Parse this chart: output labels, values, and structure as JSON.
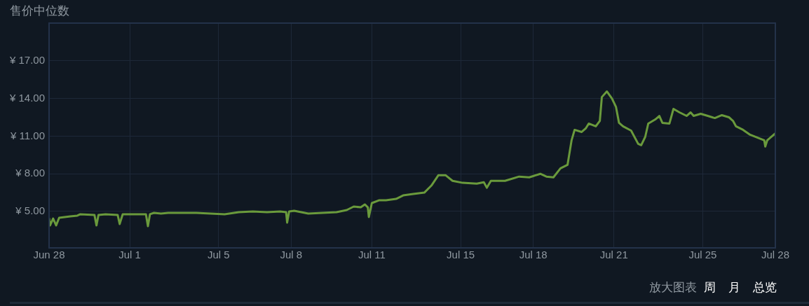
{
  "chart_data": {
    "type": "line",
    "title": "售价中位数",
    "annotations": [
      "放大图表",
      "周",
      "月",
      "总览"
    ],
    "x": [
      "--06-28T00:00",
      "--06-28T01:00",
      "--06-28T04:00",
      "--06-28T07:00",
      "--06-28T10:00",
      "--06-28T21:00",
      "--06-29T04:00",
      "--06-29T07:00",
      "--06-29T21:00",
      "--06-29T23:00",
      "--06-30T01:00",
      "--06-30T08:00",
      "--06-30T20:00",
      "--06-30T22:00",
      "--07-01T01:00",
      "--07-01T18:00",
      "--07-02T00:00",
      "--07-02T02:00",
      "--07-02T04:00",
      "--07-02T08:00",
      "--07-02T15:00",
      "--07-02T22:00",
      "--07-03T12:00",
      "--07-04T02:00",
      "--07-04T16:00",
      "--07-05T06:00",
      "--07-05T20:00",
      "--07-06T10:00",
      "--07-07T00:00",
      "--07-07T13:00",
      "--07-07T19:00",
      "--07-07T20:00",
      "--07-07T22:00",
      "--07-08T03:00",
      "--07-08T10:00",
      "--07-08T17:00",
      "--07-09T07:00",
      "--07-09T21:00",
      "--07-10T07:00",
      "--07-10T14:00",
      "--07-10T21:00",
      "--07-11T01:00",
      "--07-11T04:00",
      "--07-11T05:00",
      "--07-11T08:00",
      "--07-11T15:00",
      "--07-11T22:00",
      "--07-12T08:00",
      "--07-12T15:00",
      "--07-13T01:00",
      "--07-13T12:00",
      "--07-13T19:00",
      "--07-14T02:00",
      "--07-14T09:00",
      "--07-14T16:00",
      "--07-15T02:00",
      "--07-15T16:00",
      "--07-15T23:00",
      "--07-16T02:00",
      "--07-16T06:00",
      "--07-16T20:00",
      "--07-17T10:00",
      "--07-17T20:00",
      "--07-18T07:00",
      "--07-18T13:00",
      "--07-18T20:00",
      "--07-19T03:00",
      "--07-19T10:00",
      "--07-19T14:00",
      "--07-19T17:00",
      "--07-20T00:00",
      "--07-20T04:00",
      "--07-20T07:00",
      "--07-20T14:00",
      "--07-20T18:00",
      "--07-20T20:00",
      "--07-21T01:00",
      "--07-21T06:00",
      "--07-21T10:00",
      "--07-21T13:00",
      "--07-21T17:00",
      "--07-22T01:00",
      "--07-22T08:00",
      "--07-22T11:00",
      "--07-22T15:00",
      "--07-22T18:00",
      "--07-23T01:00",
      "--07-23T05:00",
      "--07-23T08:00",
      "--07-23T15:00",
      "--07-23T19:00",
      "--07-24T01:00",
      "--07-24T08:00",
      "--07-24T12:00",
      "--07-24T15:00",
      "--07-24T22:00",
      "--07-25T05:00",
      "--07-25T12:00",
      "--07-25T19:00",
      "--07-26T02:00",
      "--07-26T06:00",
      "--07-26T09:00",
      "--07-26T16:00",
      "--07-26T23:00",
      "--07-27T06:00",
      "--07-27T13:00",
      "--07-27T14:00",
      "--07-27T16:00",
      "--07-27T20:00",
      "--07-28T00:00"
    ],
    "series": [
      {
        "color": "#6a9a3c",
        "values": [
          4.44,
          3.89,
          4.44,
          3.89,
          4.5,
          4.61,
          4.67,
          4.78,
          4.72,
          3.89,
          4.72,
          4.78,
          4.72,
          4.0,
          4.78,
          4.78,
          4.78,
          3.83,
          4.78,
          4.89,
          4.83,
          4.89,
          4.89,
          4.89,
          4.83,
          4.78,
          4.94,
          5.0,
          4.94,
          5.0,
          4.94,
          4.11,
          5.0,
          5.06,
          4.94,
          4.83,
          4.89,
          4.94,
          5.11,
          5.39,
          5.33,
          5.56,
          5.33,
          4.56,
          5.67,
          5.89,
          5.89,
          6.0,
          6.28,
          6.39,
          6.5,
          7.06,
          7.89,
          7.89,
          7.44,
          7.28,
          7.22,
          7.33,
          6.89,
          7.44,
          7.44,
          7.78,
          7.72,
          8.0,
          7.78,
          7.72,
          8.44,
          8.72,
          10.67,
          11.5,
          11.33,
          11.61,
          12.0,
          11.78,
          12.22,
          14.11,
          14.56,
          14.0,
          13.33,
          12.06,
          11.78,
          11.44,
          10.39,
          10.28,
          10.94,
          12.0,
          12.33,
          12.61,
          12.06,
          12.0,
          13.17,
          12.89,
          12.61,
          12.89,
          12.61,
          12.78,
          12.61,
          12.44,
          12.67,
          12.5,
          12.22,
          11.78,
          11.5,
          11.11,
          10.89,
          10.67,
          10.17,
          10.67,
          10.94,
          11.22
        ]
      }
    ],
    "xlim": [
      "--06-28T00:00",
      "--07-28T00:00"
    ],
    "xticks": [
      {
        "value": "--06-28T00:00",
        "label": "Jun 28"
      },
      {
        "value": "--07-01T08:00",
        "label": "Jul 1"
      },
      {
        "value": "--07-05T00:00",
        "label": "Jul 5"
      },
      {
        "value": "--07-08T00:00",
        "label": "Jul 8"
      },
      {
        "value": "--07-11T08:00",
        "label": "Jul 11"
      },
      {
        "value": "--07-15T00:00",
        "label": "Jul 15"
      },
      {
        "value": "--07-18T00:00",
        "label": "Jul 18"
      },
      {
        "value": "--07-21T08:00",
        "label": "Jul 21"
      },
      {
        "value": "--07-25T00:00",
        "label": "Jul 25"
      },
      {
        "value": "--07-28T00:00",
        "label": "Jul 28"
      }
    ],
    "ylim": [
      2.1,
      20
    ],
    "yticks": [
      {
        "value": 5,
        "label": "¥ 5.00"
      },
      {
        "value": 8,
        "label": "¥ 8.00"
      },
      {
        "value": 11,
        "label": "¥ 11.00"
      },
      {
        "value": 14,
        "label": "¥ 14.00"
      },
      {
        "value": 17,
        "label": "¥ 17.00"
      }
    ],
    "grid": true,
    "legend": false,
    "marker": "none",
    "line_style": "solid"
  }
}
